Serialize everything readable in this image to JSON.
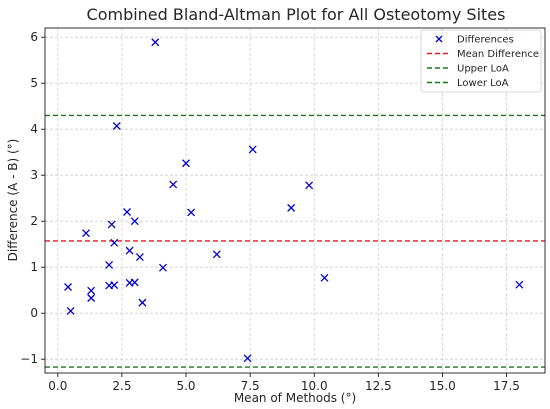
{
  "chart_data": {
    "type": "scatter",
    "title": "Combined Bland-Altman Plot for All Osteotomy Sites",
    "xlabel": "Mean of Methods (°)",
    "ylabel": "Difference (A - B) (°)",
    "xlim": [
      -0.5,
      19.0
    ],
    "ylim": [
      -1.3,
      6.2
    ],
    "xticks": [
      0.0,
      2.5,
      5.0,
      7.5,
      10.0,
      12.5,
      15.0,
      17.5
    ],
    "xtick_labels": [
      "0.0",
      "2.5",
      "5.0",
      "7.5",
      "10.0",
      "12.5",
      "15.0",
      "17.5"
    ],
    "yticks": [
      -1,
      0,
      1,
      2,
      3,
      4,
      5,
      6
    ],
    "ytick_labels": [
      "−1",
      "0",
      "1",
      "2",
      "3",
      "4",
      "5",
      "6"
    ],
    "grid": true,
    "legend_position": "top-right",
    "series": [
      {
        "name": "Differences",
        "marker": "x",
        "color": "#0000cc",
        "points": [
          {
            "x": 0.4,
            "y": 0.57
          },
          {
            "x": 0.5,
            "y": 0.05
          },
          {
            "x": 1.1,
            "y": 1.74
          },
          {
            "x": 1.3,
            "y": 0.49
          },
          {
            "x": 1.3,
            "y": 0.33
          },
          {
            "x": 2.0,
            "y": 0.6
          },
          {
            "x": 2.0,
            "y": 1.05
          },
          {
            "x": 2.1,
            "y": 1.93
          },
          {
            "x": 2.2,
            "y": 1.53
          },
          {
            "x": 2.2,
            "y": 0.61
          },
          {
            "x": 2.3,
            "y": 4.07
          },
          {
            "x": 2.7,
            "y": 2.2
          },
          {
            "x": 2.8,
            "y": 1.36
          },
          {
            "x": 2.8,
            "y": 0.66
          },
          {
            "x": 3.0,
            "y": 2.0
          },
          {
            "x": 3.0,
            "y": 0.67
          },
          {
            "x": 3.2,
            "y": 1.22
          },
          {
            "x": 3.3,
            "y": 0.23
          },
          {
            "x": 3.8,
            "y": 5.89
          },
          {
            "x": 4.1,
            "y": 0.99
          },
          {
            "x": 4.5,
            "y": 2.8
          },
          {
            "x": 5.0,
            "y": 3.26
          },
          {
            "x": 5.2,
            "y": 2.19
          },
          {
            "x": 6.2,
            "y": 1.28
          },
          {
            "x": 7.4,
            "y": -0.98
          },
          {
            "x": 7.6,
            "y": 3.56
          },
          {
            "x": 9.1,
            "y": 2.29
          },
          {
            "x": 9.8,
            "y": 2.78
          },
          {
            "x": 10.4,
            "y": 0.77
          },
          {
            "x": 18.0,
            "y": 0.62
          }
        ]
      }
    ],
    "lines": [
      {
        "name": "Mean Difference",
        "y": 1.57,
        "color": "#e02020",
        "style": "dashed"
      },
      {
        "name": "Upper LoA",
        "y": 4.3,
        "color": "#1a7a1a",
        "style": "dashed"
      },
      {
        "name": "Lower LoA",
        "y": -1.17,
        "color": "#1a7a1a",
        "style": "dashed"
      }
    ]
  }
}
